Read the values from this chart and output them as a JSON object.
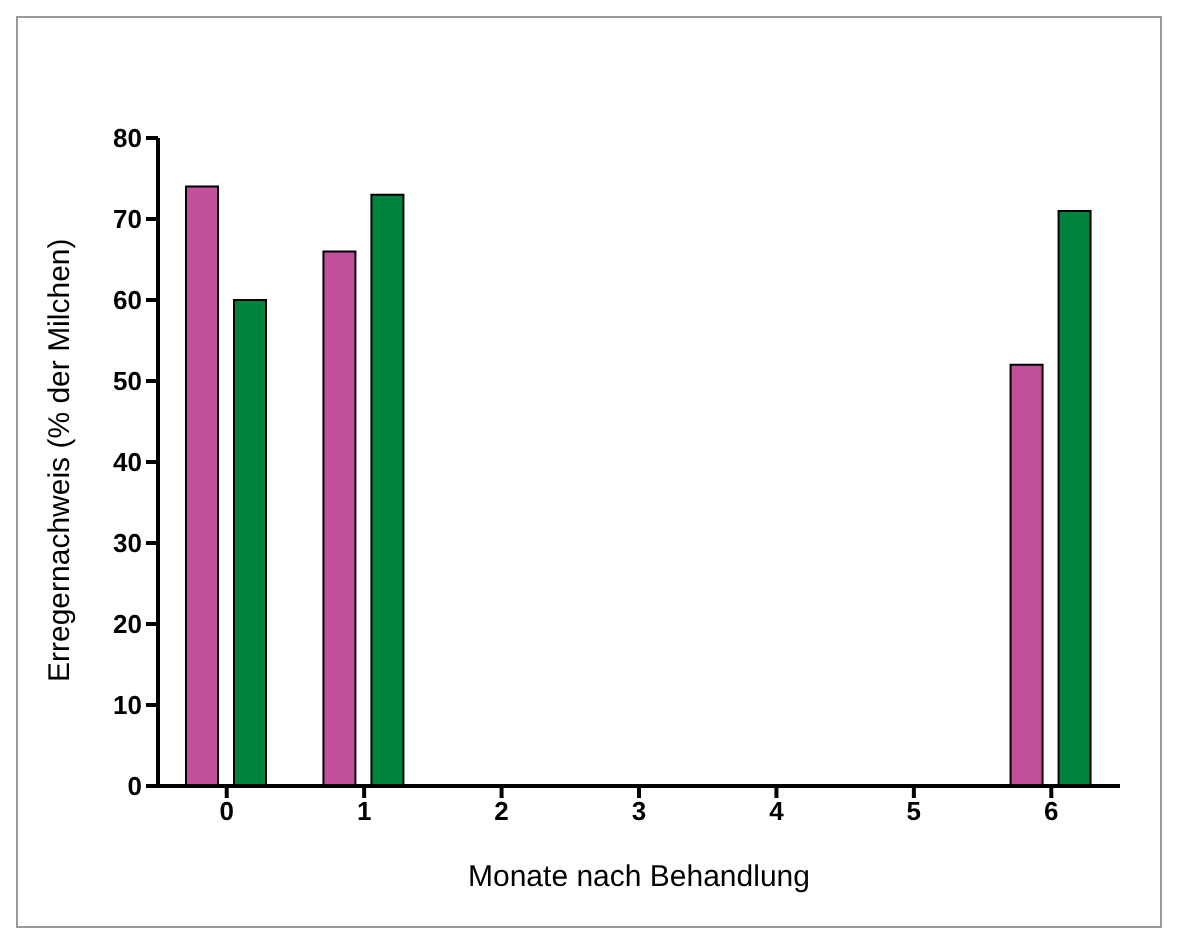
{
  "chart_data": {
    "type": "bar",
    "xlabel": "Monate nach Behandlung",
    "ylabel": "Erregernachweis (% der Milchen)",
    "categories": [
      "0",
      "1",
      "2",
      "3",
      "4",
      "5",
      "6"
    ],
    "series": [
      {
        "color": "#c0509c",
        "values": [
          74,
          66,
          null,
          null,
          null,
          null,
          52
        ]
      },
      {
        "color": "#00843d",
        "values": [
          60,
          73,
          null,
          null,
          null,
          null,
          71
        ]
      }
    ],
    "ylim": [
      0,
      80
    ],
    "yticks": [
      0,
      10,
      20,
      30,
      40,
      50,
      60,
      70,
      80
    ],
    "grid": false,
    "legend": false
  }
}
